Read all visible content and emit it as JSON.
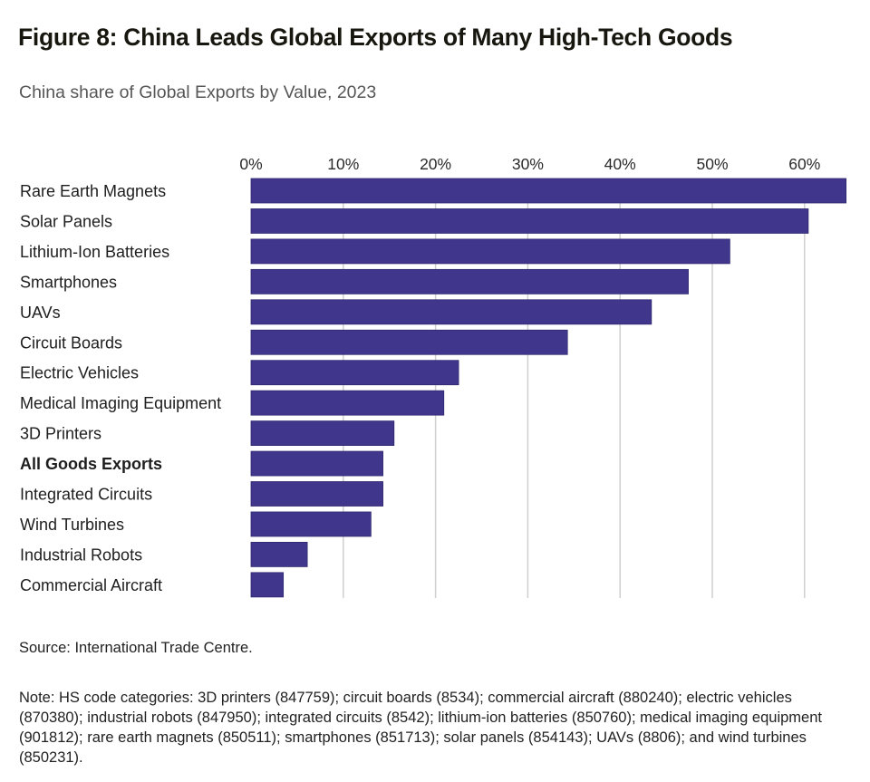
{
  "header": {
    "title": "Figure 8: China Leads Global Exports of Many High-Tech Goods",
    "subtitle": "China share of Global Exports by Value, 2023"
  },
  "chart_data": {
    "type": "bar",
    "orientation": "horizontal",
    "title": "Figure 8: China Leads Global Exports of Many High-Tech Goods",
    "subtitle": "China share of Global Exports by Value, 2023",
    "xlabel": "",
    "ylabel": "",
    "xlim": [
      0,
      65
    ],
    "ticks": [
      0,
      10,
      20,
      30,
      40,
      50,
      60
    ],
    "tick_labels": [
      "0%",
      "10%",
      "20%",
      "30%",
      "40%",
      "50%",
      "60%"
    ],
    "tick_position": "top",
    "grid": true,
    "unit": "%",
    "bar_color": "#40378c",
    "highlighted_categories": [
      "All Goods Exports"
    ],
    "categories": [
      "Rare Earth Magnets",
      "Solar Panels",
      "Lithium-Ion Batteries",
      "Smartphones",
      "UAVs",
      "Circuit Boards",
      "Electric Vehicles",
      "Medical Imaging Equipment",
      "3D Printers",
      "All Goods Exports",
      "Integrated Circuits",
      "Wind Turbines",
      "Industrial Robots",
      "Commercial Aircraft"
    ],
    "values": [
      64.5,
      60.4,
      51.9,
      47.4,
      43.4,
      34.3,
      22.5,
      20.9,
      15.5,
      14.3,
      14.3,
      13.0,
      6.1,
      3.5
    ]
  },
  "footer": {
    "source": "Source: International Trade Centre.",
    "note": "Note: HS code categories: 3D printers (847759); circuit boards (8534); commercial aircraft (880240); electric vehicles (870380); industrial robots (847950); integrated circuits (8542); lithium-ion batteries (850760); medical imaging equipment (901812); rare earth magnets (850511); smartphones (851713); solar panels (854143); UAVs (8806); and wind turbines (850231)."
  }
}
